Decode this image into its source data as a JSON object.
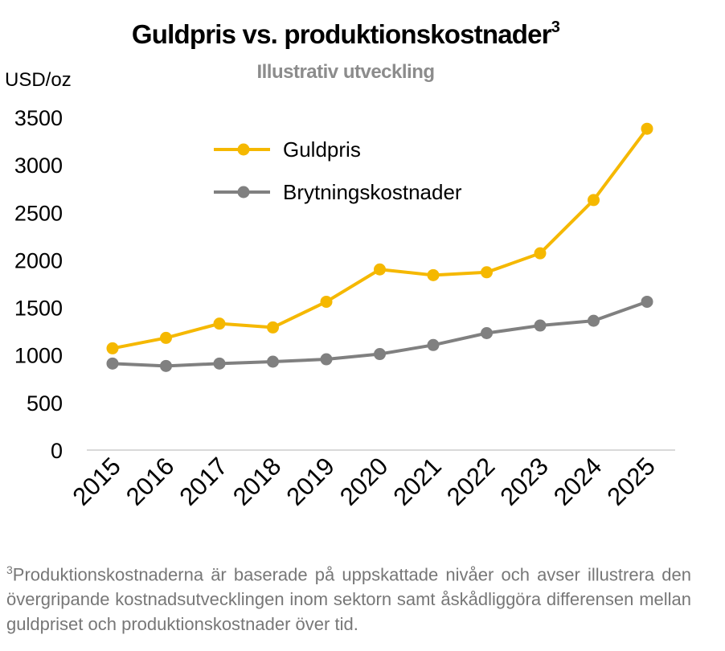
{
  "chart_data": {
    "type": "line",
    "title": "Guldpris vs. produktionskostnader",
    "title_superscript": "3",
    "subtitle": "Illustrativ utveckling",
    "ylabel": "USD/oz",
    "xlabel": "",
    "categories": [
      "2015",
      "2016",
      "2017",
      "2018",
      "2019",
      "2020",
      "2021",
      "2022",
      "2023",
      "2024",
      "2025"
    ],
    "yticks": [
      "0",
      "500",
      "1000",
      "1500",
      "2000",
      "2500",
      "3000",
      "3500"
    ],
    "ylim": [
      0,
      3500
    ],
    "grid": false,
    "legend_position": "top-center",
    "series": [
      {
        "name": "Guldpris",
        "color": "#f5b800",
        "values": [
          1070,
          1180,
          1330,
          1290,
          1560,
          1900,
          1840,
          1870,
          2070,
          2630,
          3380
        ]
      },
      {
        "name": "Brytningskostnader",
        "color": "#808080",
        "values": [
          910,
          885,
          910,
          930,
          955,
          1010,
          1105,
          1230,
          1310,
          1360,
          1560
        ]
      }
    ]
  },
  "footnote": {
    "marker": "3",
    "text": "Produktionskostnaderna är baserade på uppskattade nivåer och avser illustrera den övergripande kostnadsutvecklingen inom sektorn samt åskådliggöra differensen mellan guldpriset och produktionskostnader över tid."
  }
}
